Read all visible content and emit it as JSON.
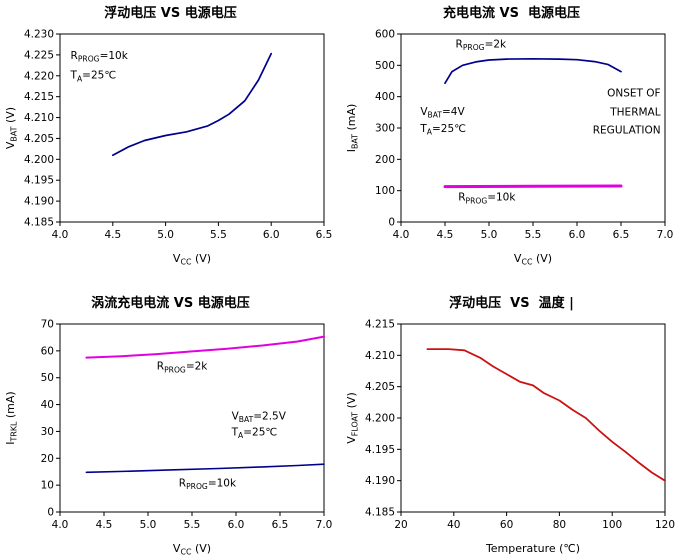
{
  "page": {
    "background": "#ffffff",
    "text_color": "#000000",
    "plot_border_color": "#000000"
  },
  "chart_data": [
    {
      "id": "float-voltage-vs-supply-voltage",
      "type": "line",
      "title": "浮动电压 VS 电源电压",
      "xlabel": "V|CC| (V)",
      "ylabel": "V|BAT| (V)",
      "xlim": [
        4.0,
        6.5
      ],
      "ylim": [
        4.185,
        4.23
      ],
      "xticks": [
        "4.0",
        "4.5",
        "5.0",
        "5.5",
        "6.0",
        "6.5"
      ],
      "yticks": [
        "4.185",
        "4.190",
        "4.195",
        "4.200",
        "4.205",
        "4.210",
        "4.215",
        "4.220",
        "4.225",
        "4.230"
      ],
      "grid": false,
      "legend": "none",
      "series": [
        {
          "id": "rprog-10k",
          "name": "RPROG=10k",
          "color": "#00008B",
          "width": 1.7,
          "points": [
            [
              4.5,
              4.201
            ],
            [
              4.65,
              4.203
            ],
            [
              4.8,
              4.2045
            ],
            [
              5.0,
              4.2057
            ],
            [
              5.2,
              4.2066
            ],
            [
              5.4,
              4.208
            ],
            [
              5.5,
              4.2093
            ],
            [
              5.6,
              4.2108
            ],
            [
              5.75,
              4.214
            ],
            [
              5.88,
              4.219
            ],
            [
              6.0,
              4.2253
            ]
          ]
        }
      ],
      "annotations": [
        {
          "x": 4.1,
          "y": 4.224,
          "text": "R|PROG|=10k",
          "anchor": "start"
        },
        {
          "x": 4.1,
          "y": 4.2193,
          "text": "T|A|=25℃",
          "anchor": "start"
        }
      ]
    },
    {
      "id": "charge-current-vs-supply-voltage",
      "type": "line",
      "title": "充电电流 VS  电源电压",
      "xlabel": "V|CC| (V)",
      "ylabel": "I|BAT| (mA)",
      "xlim": [
        4.0,
        7.0
      ],
      "ylim": [
        0,
        600
      ],
      "xticks": [
        "4.0",
        "4.5",
        "5.0",
        "5.5",
        "6.0",
        "6.5",
        "7.0"
      ],
      "yticks": [
        "0",
        "100",
        "200",
        "300",
        "400",
        "500",
        "600"
      ],
      "grid": false,
      "legend": "none",
      "series": [
        {
          "id": "rprog-2k",
          "name": "RPROG=2k",
          "color": "#00008B",
          "width": 1.7,
          "points": [
            [
              4.5,
              443
            ],
            [
              4.58,
              480
            ],
            [
              4.7,
              500
            ],
            [
              4.85,
              511
            ],
            [
              5.0,
              517
            ],
            [
              5.2,
              520
            ],
            [
              5.5,
              521
            ],
            [
              5.8,
              520
            ],
            [
              6.0,
              518
            ],
            [
              6.2,
              512
            ],
            [
              6.35,
              503
            ],
            [
              6.5,
              480
            ]
          ]
        },
        {
          "id": "rprog-10k",
          "name": "RPROG=10k",
          "color": "#E000E0",
          "width": 3,
          "points": [
            [
              4.5,
              113
            ],
            [
              5.5,
              114
            ],
            [
              6.5,
              115
            ]
          ]
        }
      ],
      "annotations": [
        {
          "x": 4.62,
          "y": 557,
          "text": "R|PROG|=2k",
          "anchor": "start"
        },
        {
          "x": 4.22,
          "y": 342,
          "text": "V|BAT|=4V",
          "anchor": "start"
        },
        {
          "x": 4.22,
          "y": 288,
          "text": "T|A|=25℃",
          "anchor": "start"
        },
        {
          "x": 6.95,
          "y": 400,
          "text": "ONSET OF",
          "anchor": "end"
        },
        {
          "x": 6.95,
          "y": 340,
          "text": "THERMAL",
          "anchor": "end"
        },
        {
          "x": 6.95,
          "y": 282,
          "text": "REGULATION",
          "anchor": "end"
        },
        {
          "x": 4.65,
          "y": 68,
          "text": "R|PROG|=10k",
          "anchor": "start"
        }
      ]
    },
    {
      "id": "trickle-charge-current-vs-supply-voltage",
      "type": "line",
      "title": "涡流充电电流 VS 电源电压",
      "xlabel": "V|CC| (V)",
      "ylabel": "I|TRKL| (mA)",
      "xlim": [
        4.0,
        7.0
      ],
      "ylim": [
        0,
        70
      ],
      "xticks": [
        "4.0",
        "4.5",
        "5.0",
        "5.5",
        "6.0",
        "6.5",
        "7.0"
      ],
      "yticks": [
        "0",
        "10",
        "20",
        "30",
        "40",
        "50",
        "60",
        "70"
      ],
      "grid": false,
      "legend": "none",
      "series": [
        {
          "id": "rprog-2k",
          "name": "RPROG=2k",
          "color": "#E000E0",
          "width": 2,
          "points": [
            [
              4.3,
              57.5
            ],
            [
              4.7,
              58
            ],
            [
              5.1,
              58.8
            ],
            [
              5.5,
              59.8
            ],
            [
              5.9,
              60.8
            ],
            [
              6.3,
              62
            ],
            [
              6.7,
              63.5
            ],
            [
              7.0,
              65.3
            ]
          ]
        },
        {
          "id": "rprog-10k",
          "name": "RPROG=10k",
          "color": "#00008B",
          "width": 1.6,
          "points": [
            [
              4.3,
              14.8
            ],
            [
              4.8,
              15.2
            ],
            [
              5.3,
              15.7
            ],
            [
              5.8,
              16.2
            ],
            [
              6.3,
              16.8
            ],
            [
              6.7,
              17.3
            ],
            [
              7.0,
              17.8
            ]
          ]
        }
      ],
      "annotations": [
        {
          "x": 5.1,
          "y": 53,
          "text": "R|PROG|=2k",
          "anchor": "start"
        },
        {
          "x": 5.95,
          "y": 34.5,
          "text": "V|BAT|=2.5V",
          "anchor": "start"
        },
        {
          "x": 5.95,
          "y": 28.5,
          "text": "T|A|=25℃",
          "anchor": "start"
        },
        {
          "x": 5.35,
          "y": 9.5,
          "text": "R|PROG|=10k",
          "anchor": "start"
        }
      ]
    },
    {
      "id": "float-voltage-vs-temperature",
      "type": "line",
      "title": "浮动电压  VS  温度 |",
      "xlabel": "Temperature (℃)",
      "ylabel": "V|FLOAT| (V)",
      "xlim": [
        20,
        120
      ],
      "ylim": [
        4.185,
        4.215
      ],
      "xticks": [
        "20",
        "40",
        "60",
        "80",
        "100",
        "120"
      ],
      "yticks": [
        "4.185",
        "4.190",
        "4.195",
        "4.200",
        "4.205",
        "4.210",
        "4.215"
      ],
      "grid": false,
      "legend": "none",
      "series": [
        {
          "id": "vfloat",
          "name": "VFLOAT",
          "color": "#CC1111",
          "width": 1.8,
          "points": [
            [
              30,
              4.211
            ],
            [
              38,
              4.211
            ],
            [
              44,
              4.2108
            ],
            [
              50,
              4.2096
            ],
            [
              55,
              4.2082
            ],
            [
              60,
              4.207
            ],
            [
              65,
              4.2058
            ],
            [
              70,
              4.2052
            ],
            [
              74,
              4.204
            ],
            [
              80,
              4.2028
            ],
            [
              85,
              4.2013
            ],
            [
              90,
              4.2
            ],
            [
              95,
              4.198
            ],
            [
              100,
              4.1962
            ],
            [
              105,
              4.1946
            ],
            [
              110,
              4.1929
            ],
            [
              115,
              4.1913
            ],
            [
              120,
              4.19
            ]
          ]
        }
      ],
      "annotations": []
    }
  ]
}
